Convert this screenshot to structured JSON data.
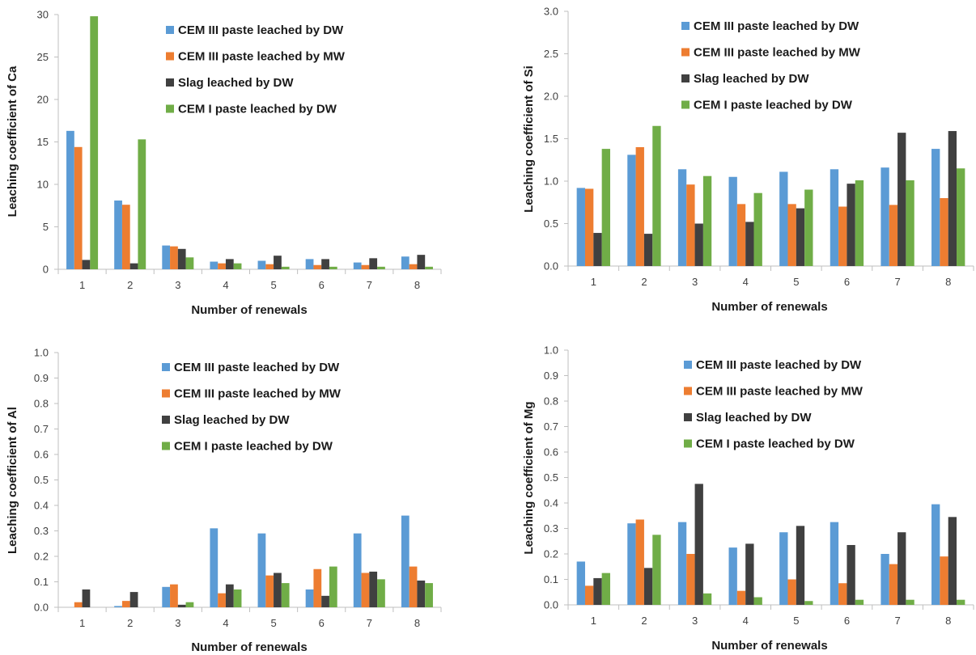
{
  "colors": {
    "cem3_dw": "#5B9BD5",
    "cem3_mw": "#ED7D31",
    "slag_dw": "#404040",
    "cem1_dw": "#70AD47",
    "axis": "#bfbfbf"
  },
  "chart_data": [
    {
      "type": "bar",
      "xlabel": "Number of renewals",
      "ylabel": "Leaching coefficient of Ca",
      "ylim": [
        0,
        30
      ],
      "yticks": [
        "0",
        "5",
        "10",
        "15",
        "20",
        "25",
        "30"
      ],
      "categories": [
        "1",
        "2",
        "3",
        "4",
        "5",
        "6",
        "7",
        "8"
      ],
      "grid": false,
      "legend": "top-right",
      "series": [
        {
          "name": "CEM III paste leached by DW",
          "color": "#5B9BD5",
          "values": [
            16.3,
            8.1,
            2.8,
            0.9,
            1.0,
            1.2,
            0.8,
            1.5
          ]
        },
        {
          "name": "CEM III paste leached by MW",
          "color": "#ED7D31",
          "values": [
            14.4,
            7.6,
            2.7,
            0.7,
            0.6,
            0.5,
            0.5,
            0.6
          ]
        },
        {
          "name": "Slag leached by DW",
          "color": "#404040",
          "values": [
            1.1,
            0.7,
            2.4,
            1.2,
            1.6,
            1.2,
            1.3,
            1.7
          ]
        },
        {
          "name": "CEM I paste leached by DW",
          "color": "#70AD47",
          "values": [
            29.8,
            15.3,
            1.4,
            0.7,
            0.3,
            0.3,
            0.3,
            0.3
          ]
        }
      ]
    },
    {
      "type": "bar",
      "xlabel": "Number of renewals",
      "ylabel": "Leaching coefficient of Si",
      "ylim": [
        0,
        3
      ],
      "yticks": [
        "0.0",
        "0.5",
        "1.0",
        "1.5",
        "2.0",
        "2.5",
        "3.0"
      ],
      "categories": [
        "1",
        "2",
        "3",
        "4",
        "5",
        "6",
        "7",
        "8"
      ],
      "grid": false,
      "legend": "top-right",
      "series": [
        {
          "name": "CEM III paste leached by DW",
          "color": "#5B9BD5",
          "values": [
            0.92,
            1.31,
            1.14,
            1.05,
            1.11,
            1.14,
            1.16,
            1.38
          ]
        },
        {
          "name": "CEM III paste leached by MW",
          "color": "#ED7D31",
          "values": [
            0.91,
            1.4,
            0.96,
            0.73,
            0.73,
            0.7,
            0.72,
            0.8
          ]
        },
        {
          "name": "Slag leached by DW",
          "color": "#404040",
          "values": [
            0.39,
            0.38,
            0.5,
            0.52,
            0.68,
            0.97,
            1.57,
            1.59
          ]
        },
        {
          "name": "CEM I paste leached by DW",
          "color": "#70AD47",
          "values": [
            1.38,
            1.65,
            1.06,
            0.86,
            0.9,
            1.01,
            1.01,
            1.15
          ]
        }
      ]
    },
    {
      "type": "bar",
      "xlabel": "Number of renewals",
      "ylabel": "Leaching coefficient of Al",
      "ylim": [
        0,
        1
      ],
      "yticks": [
        "0.0",
        "0.1",
        "0.2",
        "0.3",
        "0.4",
        "0.5",
        "0.6",
        "0.7",
        "0.8",
        "0.9",
        "1.0"
      ],
      "categories": [
        "1",
        "2",
        "3",
        "4",
        "5",
        "6",
        "7",
        "8"
      ],
      "grid": false,
      "legend": "top-right",
      "series": [
        {
          "name": "CEM III paste leached by DW",
          "color": "#5B9BD5",
          "values": [
            0.0,
            0.005,
            0.08,
            0.31,
            0.29,
            0.07,
            0.29,
            0.36
          ]
        },
        {
          "name": "CEM III paste leached by MW",
          "color": "#ED7D31",
          "values": [
            0.02,
            0.025,
            0.09,
            0.055,
            0.125,
            0.15,
            0.135,
            0.16
          ]
        },
        {
          "name": "Slag leached by DW",
          "color": "#404040",
          "values": [
            0.07,
            0.06,
            0.01,
            0.09,
            0.135,
            0.045,
            0.14,
            0.105
          ]
        },
        {
          "name": "CEM I paste leached by DW",
          "color": "#70AD47",
          "values": [
            0.0,
            0.0,
            0.02,
            0.07,
            0.095,
            0.16,
            0.11,
            0.095
          ]
        }
      ]
    },
    {
      "type": "bar",
      "xlabel": "Number of renewals",
      "ylabel": "Leaching coefficient of Mg",
      "ylim": [
        0,
        1
      ],
      "yticks": [
        "0.0",
        "0.1",
        "0.2",
        "0.3",
        "0.4",
        "0.5",
        "0.6",
        "0.7",
        "0.8",
        "0.9",
        "1.0"
      ],
      "categories": [
        "1",
        "2",
        "3",
        "4",
        "5",
        "6",
        "7",
        "8"
      ],
      "grid": false,
      "legend": "top-right",
      "series": [
        {
          "name": "CEM III paste leached by DW",
          "color": "#5B9BD5",
          "values": [
            0.17,
            0.32,
            0.325,
            0.225,
            0.285,
            0.325,
            0.2,
            0.395
          ]
        },
        {
          "name": "CEM III paste leached by MW",
          "color": "#ED7D31",
          "values": [
            0.075,
            0.335,
            0.2,
            0.055,
            0.1,
            0.085,
            0.16,
            0.19
          ]
        },
        {
          "name": "Slag leached by DW",
          "color": "#404040",
          "values": [
            0.105,
            0.145,
            0.475,
            0.24,
            0.31,
            0.235,
            0.285,
            0.345
          ]
        },
        {
          "name": "CEM I paste leached by DW",
          "color": "#70AD47",
          "values": [
            0.125,
            0.275,
            0.045,
            0.03,
            0.015,
            0.02,
            0.02,
            0.02
          ]
        }
      ]
    }
  ]
}
